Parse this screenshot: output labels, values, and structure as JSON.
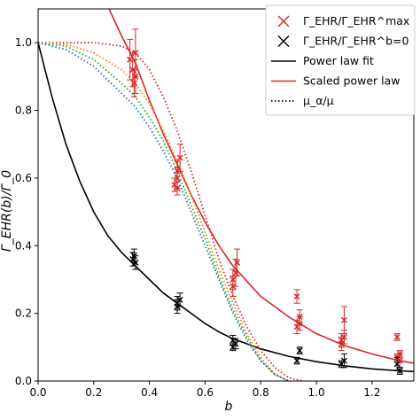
{
  "chart_data": {
    "type": "scatter",
    "xlabel": "b",
    "ylabel": "Γ_EHR(b)/Γ_0",
    "xlim": [
      0.0,
      1.35
    ],
    "ylim": [
      0.0,
      1.1
    ],
    "x_ticks": [
      "0.0",
      "0.2",
      "0.4",
      "0.6",
      "0.8",
      "1.0",
      "1.2"
    ],
    "y_ticks": [
      "0.0",
      "0.2",
      "0.4",
      "0.6",
      "0.8",
      "1.0"
    ],
    "grid": false,
    "legend_position": "top-right",
    "legend": [
      {
        "label": "Γ_EHR/Γ_EHR^max",
        "marker": "x",
        "color": "#d62728"
      },
      {
        "label": "Γ_EHR/Γ_EHR^b=0",
        "marker": "x",
        "color": "#000000"
      },
      {
        "label": "Power law fit",
        "line": "solid",
        "color": "#000000"
      },
      {
        "label": "Scaled power law",
        "line": "solid",
        "color": "#d62728"
      },
      {
        "label": "μ_α/μ",
        "line": "dotted",
        "color": "#000000"
      }
    ],
    "series": [
      {
        "kind": "points",
        "color": "#d62728",
        "points": [
          {
            "x": 0.33,
            "y": 0.95,
            "err": 0.06
          },
          {
            "x": 0.34,
            "y": 0.92,
            "err": 0.05
          },
          {
            "x": 0.35,
            "y": 0.97,
            "err": 0.07
          },
          {
            "x": 0.345,
            "y": 0.88,
            "err": 0.04
          },
          {
            "x": 0.35,
            "y": 0.9,
            "err": 0.05
          },
          {
            "x": 0.49,
            "y": 0.58,
            "err": 0.02
          },
          {
            "x": 0.5,
            "y": 0.6,
            "err": 0.03
          },
          {
            "x": 0.5,
            "y": 0.57,
            "err": 0.02
          },
          {
            "x": 0.51,
            "y": 0.66,
            "err": 0.04
          },
          {
            "x": 0.5,
            "y": 0.62,
            "err": 0.03
          },
          {
            "x": 0.7,
            "y": 0.3,
            "err": 0.03
          },
          {
            "x": 0.71,
            "y": 0.32,
            "err": 0.04
          },
          {
            "x": 0.7,
            "y": 0.28,
            "err": 0.03
          },
          {
            "x": 0.715,
            "y": 0.35,
            "err": 0.04
          },
          {
            "x": 0.93,
            "y": 0.25,
            "err": 0.02
          },
          {
            "x": 0.94,
            "y": 0.17,
            "err": 0.02
          },
          {
            "x": 0.93,
            "y": 0.16,
            "err": 0.02
          },
          {
            "x": 0.94,
            "y": 0.19,
            "err": 0.02
          },
          {
            "x": 1.09,
            "y": 0.12,
            "err": 0.02
          },
          {
            "x": 1.1,
            "y": 0.13,
            "err": 0.02
          },
          {
            "x": 1.1,
            "y": 0.18,
            "err": 0.04
          },
          {
            "x": 1.09,
            "y": 0.11,
            "err": 0.02
          },
          {
            "x": 1.29,
            "y": 0.13,
            "err": 0.01
          },
          {
            "x": 1.3,
            "y": 0.08,
            "err": 0.01
          },
          {
            "x": 1.29,
            "y": 0.07,
            "err": 0.01
          },
          {
            "x": 1.3,
            "y": 0.06,
            "err": 0.02
          }
        ]
      },
      {
        "kind": "points",
        "color": "#000000",
        "points": [
          {
            "x": 0.345,
            "y": 0.37,
            "err": 0.02
          },
          {
            "x": 0.35,
            "y": 0.35,
            "err": 0.02
          },
          {
            "x": 0.34,
            "y": 0.36,
            "err": 0.02
          },
          {
            "x": 0.5,
            "y": 0.23,
            "err": 0.02
          },
          {
            "x": 0.5,
            "y": 0.22,
            "err": 0.02
          },
          {
            "x": 0.51,
            "y": 0.24,
            "err": 0.02
          },
          {
            "x": 0.7,
            "y": 0.12,
            "err": 0.015
          },
          {
            "x": 0.71,
            "y": 0.11,
            "err": 0.015
          },
          {
            "x": 0.7,
            "y": 0.1,
            "err": 0.01
          },
          {
            "x": 0.94,
            "y": 0.09,
            "err": 0.01
          },
          {
            "x": 0.93,
            "y": 0.06,
            "err": 0.01
          },
          {
            "x": 1.09,
            "y": 0.05,
            "err": 0.01
          },
          {
            "x": 1.1,
            "y": 0.06,
            "err": 0.02
          },
          {
            "x": 1.3,
            "y": 0.03,
            "err": 0.01
          },
          {
            "x": 1.29,
            "y": 0.05,
            "err": 0.02
          }
        ]
      },
      {
        "kind": "line",
        "style": "solid",
        "color": "#000000",
        "points": [
          [
            0.0,
            1.0
          ],
          [
            0.05,
            0.84
          ],
          [
            0.1,
            0.7
          ],
          [
            0.15,
            0.59
          ],
          [
            0.2,
            0.5
          ],
          [
            0.25,
            0.43
          ],
          [
            0.3,
            0.38
          ],
          [
            0.35,
            0.34
          ],
          [
            0.4,
            0.3
          ],
          [
            0.45,
            0.26
          ],
          [
            0.5,
            0.23
          ],
          [
            0.55,
            0.2
          ],
          [
            0.6,
            0.17
          ],
          [
            0.65,
            0.145
          ],
          [
            0.7,
            0.125
          ],
          [
            0.8,
            0.095
          ],
          [
            0.9,
            0.073
          ],
          [
            1.0,
            0.057
          ],
          [
            1.1,
            0.045
          ],
          [
            1.2,
            0.036
          ],
          [
            1.3,
            0.03
          ],
          [
            1.35,
            0.028
          ]
        ]
      },
      {
        "kind": "line",
        "style": "solid",
        "color": "#d62728",
        "points": [
          [
            0.255,
            1.1
          ],
          [
            0.3,
            1.02
          ],
          [
            0.35,
            0.94
          ],
          [
            0.4,
            0.83
          ],
          [
            0.45,
            0.73
          ],
          [
            0.5,
            0.64
          ],
          [
            0.55,
            0.55
          ],
          [
            0.6,
            0.47
          ],
          [
            0.65,
            0.4
          ],
          [
            0.7,
            0.34
          ],
          [
            0.8,
            0.25
          ],
          [
            0.9,
            0.19
          ],
          [
            1.0,
            0.14
          ],
          [
            1.1,
            0.105
          ],
          [
            1.2,
            0.08
          ],
          [
            1.3,
            0.06
          ],
          [
            1.35,
            0.053
          ]
        ]
      },
      {
        "kind": "line",
        "style": "dotted",
        "color": "#d62728",
        "points": [
          [
            0.0,
            1.0
          ],
          [
            0.2,
            1.0
          ],
          [
            0.3,
            0.99
          ],
          [
            0.35,
            0.97
          ],
          [
            0.4,
            0.92
          ],
          [
            0.45,
            0.84
          ],
          [
            0.5,
            0.74
          ],
          [
            0.55,
            0.62
          ],
          [
            0.6,
            0.49
          ],
          [
            0.65,
            0.36
          ],
          [
            0.7,
            0.25
          ],
          [
            0.75,
            0.16
          ],
          [
            0.8,
            0.09
          ],
          [
            0.85,
            0.04
          ],
          [
            0.9,
            0.01
          ],
          [
            0.95,
            0.0
          ]
        ]
      },
      {
        "kind": "line",
        "style": "dotted",
        "color": "#ff7f0e",
        "points": [
          [
            0.0,
            1.0
          ],
          [
            0.1,
            0.995
          ],
          [
            0.2,
            0.97
          ],
          [
            0.3,
            0.92
          ],
          [
            0.35,
            0.88
          ],
          [
            0.4,
            0.82
          ],
          [
            0.45,
            0.74
          ],
          [
            0.5,
            0.65
          ],
          [
            0.55,
            0.55
          ],
          [
            0.6,
            0.44
          ],
          [
            0.65,
            0.33
          ],
          [
            0.7,
            0.23
          ],
          [
            0.75,
            0.14
          ],
          [
            0.8,
            0.07
          ],
          [
            0.85,
            0.02
          ],
          [
            0.9,
            0.0
          ]
        ]
      },
      {
        "kind": "line",
        "style": "dotted",
        "color": "#2ca02c",
        "points": [
          [
            0.0,
            1.0
          ],
          [
            0.1,
            0.99
          ],
          [
            0.2,
            0.95
          ],
          [
            0.3,
            0.88
          ],
          [
            0.35,
            0.84
          ],
          [
            0.4,
            0.78
          ],
          [
            0.45,
            0.71
          ],
          [
            0.5,
            0.62
          ],
          [
            0.55,
            0.52
          ],
          [
            0.6,
            0.42
          ],
          [
            0.65,
            0.31
          ],
          [
            0.7,
            0.21
          ],
          [
            0.75,
            0.13
          ],
          [
            0.8,
            0.06
          ],
          [
            0.85,
            0.02
          ],
          [
            0.9,
            0.0
          ]
        ]
      },
      {
        "kind": "line",
        "style": "dotted",
        "color": "#1f77b4",
        "points": [
          [
            0.0,
            1.0
          ],
          [
            0.1,
            0.98
          ],
          [
            0.2,
            0.93
          ],
          [
            0.3,
            0.85
          ],
          [
            0.35,
            0.81
          ],
          [
            0.4,
            0.75
          ],
          [
            0.45,
            0.68
          ],
          [
            0.5,
            0.6
          ],
          [
            0.55,
            0.5
          ],
          [
            0.6,
            0.4
          ],
          [
            0.65,
            0.3
          ],
          [
            0.7,
            0.2
          ],
          [
            0.75,
            0.12
          ],
          [
            0.8,
            0.06
          ],
          [
            0.85,
            0.02
          ],
          [
            0.9,
            0.0
          ]
        ]
      }
    ]
  }
}
